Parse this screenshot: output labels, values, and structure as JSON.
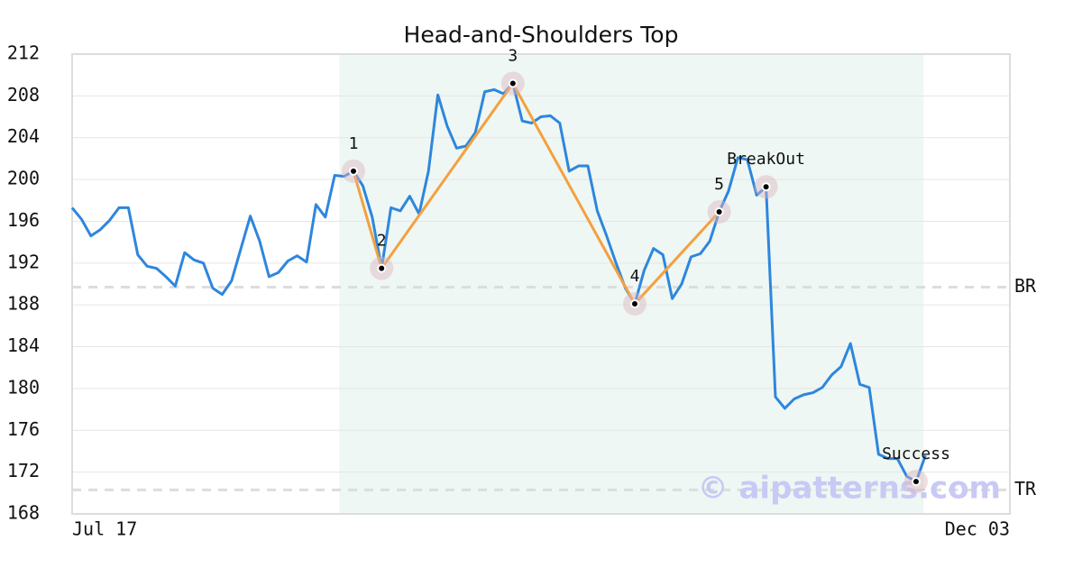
{
  "chart_data": {
    "type": "line",
    "title": "Head-and-Shoulders Top",
    "xlim": [
      0,
      100
    ],
    "xticks": [
      {
        "value": 0,
        "label": "Jul 17"
      },
      {
        "value": 100,
        "label": "Dec 03"
      }
    ],
    "ylim": [
      168,
      212
    ],
    "yticks": [
      168,
      172,
      176,
      180,
      184,
      188,
      192,
      196,
      200,
      204,
      208,
      212
    ],
    "grid": true,
    "x": [
      0,
      1,
      2,
      3,
      4,
      5,
      6,
      7,
      8,
      9,
      10,
      11,
      12,
      13,
      14,
      15,
      16,
      17,
      18,
      19,
      20,
      21,
      22,
      23,
      24,
      25,
      26,
      27,
      28,
      29,
      30,
      31,
      32,
      33,
      34,
      35,
      36,
      37,
      38,
      39,
      40,
      41,
      42,
      43,
      44,
      45,
      46,
      47,
      48,
      49,
      50,
      51,
      52,
      53,
      54,
      55,
      56,
      57,
      58,
      59,
      60,
      61,
      62,
      63,
      64,
      65,
      66,
      67,
      68,
      69,
      70,
      71,
      72,
      73,
      74,
      75,
      76,
      77,
      78,
      79,
      80,
      81,
      82,
      83,
      84,
      85,
      86,
      87,
      88,
      89,
      90,
      91
    ],
    "series": [
      {
        "color": "#2e86de",
        "values": [
          197.3,
          196.2,
          194.6,
          195.2,
          196.1,
          197.3,
          197.3,
          192.8,
          191.7,
          191.5,
          190.7,
          189.8,
          193.0,
          192.3,
          192.0,
          189.6,
          189.0,
          190.3,
          193.4,
          196.5,
          194.1,
          190.7,
          191.1,
          192.2,
          192.7,
          192.1,
          197.6,
          196.4,
          200.4,
          200.3,
          200.8,
          199.4,
          196.4,
          191.5,
          197.3,
          197.0,
          198.4,
          196.7,
          200.8,
          208.1,
          205.1,
          203.0,
          203.2,
          204.5,
          208.4,
          208.6,
          208.2,
          209.2,
          205.6,
          205.4,
          206.0,
          206.1,
          205.4,
          200.8,
          201.3,
          201.3,
          197.0,
          194.6,
          192.0,
          189.6,
          188.1,
          191.3,
          193.4,
          192.8,
          188.6,
          190.0,
          192.6,
          192.9,
          194.1,
          196.9,
          198.9,
          202.1,
          201.9,
          198.5,
          199.3,
          179.2,
          178.1,
          179.0,
          179.4,
          179.6,
          180.1,
          181.3,
          182.1,
          184.3,
          180.4,
          180.1,
          173.7,
          173.3,
          173.3,
          171.6,
          171.1,
          173.6
        ]
      }
    ],
    "shaded_range": [
      28.5,
      90.8
    ],
    "pattern": {
      "color": "#f4a040",
      "points": [
        {
          "label": "1",
          "x": 30,
          "y": 200.8
        },
        {
          "label": "2",
          "x": 33,
          "y": 191.5
        },
        {
          "label": "3",
          "x": 47,
          "y": 209.2
        },
        {
          "label": "4",
          "x": 60,
          "y": 188.1
        },
        {
          "label": "5",
          "x": 69,
          "y": 196.9
        }
      ],
      "breakout": {
        "label": "BreakOut",
        "x": 74,
        "y": 199.3
      },
      "success": {
        "label": "Success",
        "x": 90,
        "y": 171.1
      }
    },
    "levels": [
      {
        "label": "BR",
        "value": 189.7
      },
      {
        "label": "TR",
        "value": 170.3
      }
    ],
    "watermark": "© aipatterns.com"
  }
}
